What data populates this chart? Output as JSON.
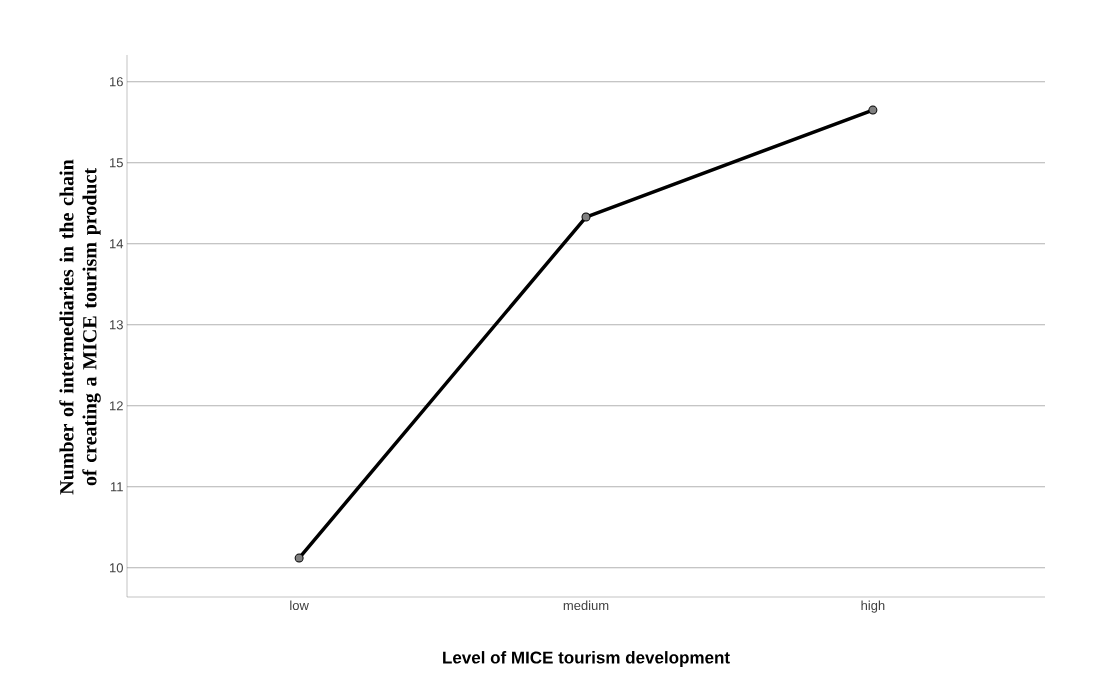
{
  "chart_data": {
    "type": "line",
    "xlabel": "Level of MICE tourism development",
    "ylabel": "Number of intermediaries in the chain of creating a MICE tourism product",
    "categories": [
      "low",
      "medium",
      "high"
    ],
    "series": [
      {
        "color": "#000000",
        "values": [
          10.12,
          14.33,
          15.65
        ]
      }
    ],
    "ylim": [
      9.64,
      16.33
    ],
    "yticks": [
      10,
      11,
      12,
      13,
      14,
      15,
      16
    ],
    "grid": "y",
    "marker": "circle",
    "line_style": "solid"
  }
}
